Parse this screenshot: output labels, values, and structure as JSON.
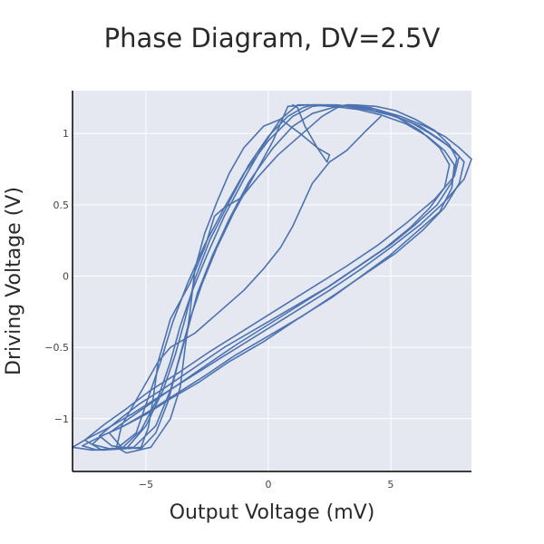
{
  "chart_data": {
    "type": "line",
    "title": "Phase Diagram, DV=2.5V",
    "xlabel": "Output Voltage (mV)",
    "ylabel": "Driving Voltage (V)",
    "xlim": [
      -8.0,
      8.3
    ],
    "ylim": [
      -1.37,
      1.3
    ],
    "xticks": [
      -5,
      0,
      5
    ],
    "xtick_labels": [
      "−5",
      "0",
      "5"
    ],
    "yticks": [
      -1,
      -0.5,
      0,
      0.5,
      1
    ],
    "ytick_labels": [
      "−1",
      "−0.5",
      "0",
      "0.5",
      "1"
    ],
    "grid": true,
    "legend": "none",
    "colors": {
      "series": "#4c72b0",
      "plot_bg": "#e5e8f0",
      "grid": "#ffffff",
      "axis": "#000000"
    },
    "series": [
      {
        "x": [
          0.8,
          1.6,
          2.6,
          3.6,
          4.6,
          5.6,
          6.5,
          7.2,
          7.6,
          7.5,
          7.0,
          6.0,
          5.0,
          3.8,
          2.6,
          1.2,
          -0.2,
          -1.6,
          -2.8,
          -4.0,
          -5.0,
          -6.0,
          -6.8,
          -7.2,
          -6.5,
          -5.5,
          -4.6,
          -4.0,
          -3.6,
          -3.2,
          -2.7,
          -2.1,
          -1.4,
          -0.6,
          0.2,
          0.8
        ],
        "y": [
          1.19,
          1.2,
          1.19,
          1.17,
          1.13,
          1.07,
          0.98,
          0.88,
          0.78,
          0.62,
          0.45,
          0.3,
          0.15,
          0.0,
          -0.15,
          -0.3,
          -0.46,
          -0.6,
          -0.74,
          -0.86,
          -0.97,
          -1.06,
          -1.12,
          -1.18,
          -1.21,
          -1.2,
          -1.05,
          -0.8,
          -0.55,
          -0.3,
          -0.05,
          0.2,
          0.45,
          0.7,
          0.95,
          1.19
        ]
      },
      {
        "x": [
          1.2,
          2.2,
          3.2,
          4.2,
          5.2,
          6.2,
          7.0,
          7.6,
          8.0,
          7.8,
          7.2,
          6.3,
          5.2,
          4.0,
          2.8,
          1.4,
          0.0,
          -1.4,
          -2.6,
          -3.8,
          -4.9,
          -5.9,
          -6.8,
          -7.6,
          -7.0,
          -6.0,
          -5.2,
          -4.5,
          -4.0,
          -3.6,
          -3.1,
          -2.5,
          -1.8,
          -1.0,
          -0.2,
          0.5,
          1.2
        ],
        "y": [
          1.2,
          1.2,
          1.19,
          1.16,
          1.12,
          1.05,
          0.96,
          0.88,
          0.8,
          0.65,
          0.48,
          0.32,
          0.16,
          0.02,
          -0.12,
          -0.28,
          -0.42,
          -0.56,
          -0.7,
          -0.83,
          -0.95,
          -1.05,
          -1.12,
          -1.19,
          -1.22,
          -1.21,
          -1.08,
          -0.85,
          -0.6,
          -0.35,
          -0.1,
          0.15,
          0.42,
          0.68,
          0.92,
          1.1,
          1.2
        ]
      },
      {
        "x": [
          2.4,
          3.4,
          4.4,
          5.4,
          6.4,
          7.2,
          7.8,
          8.3,
          8.0,
          7.2,
          6.2,
          5.0,
          3.8,
          2.5,
          1.0,
          -0.5,
          -2.0,
          -3.3,
          -4.5,
          -5.6,
          -6.6,
          -7.4,
          -8.0,
          -7.2,
          -6.2,
          -5.4,
          -4.9,
          -4.4,
          -3.9,
          -3.3,
          -2.6,
          -1.8,
          -1.0,
          0.0,
          1.0,
          1.8,
          2.4
        ],
        "y": [
          1.2,
          1.19,
          1.17,
          1.12,
          1.05,
          0.98,
          0.9,
          0.82,
          0.68,
          0.52,
          0.36,
          0.2,
          0.05,
          -0.1,
          -0.26,
          -0.42,
          -0.58,
          -0.72,
          -0.85,
          -0.97,
          -1.07,
          -1.14,
          -1.2,
          -1.22,
          -1.21,
          -1.1,
          -0.85,
          -0.6,
          -0.32,
          -0.05,
          0.22,
          0.48,
          0.72,
          0.95,
          1.12,
          1.19,
          1.2
        ]
      },
      {
        "x": [
          3.0,
          3.3,
          4.2,
          5.2,
          6.2,
          7.0,
          7.4,
          7.2,
          6.6,
          5.8,
          4.8,
          3.6,
          2.4,
          1.0,
          -0.4,
          -1.8,
          -3.0,
          -4.2,
          -5.3,
          -6.2,
          -6.9,
          -6.4,
          -5.7,
          -5.2,
          -4.9,
          -4.7,
          -4.5,
          -4.0,
          -3.2,
          -2.6,
          -2.2,
          -1.8,
          -1.1,
          -0.4,
          0.4,
          1.4,
          2.2,
          2.8,
          3.0
        ],
        "y": [
          1.19,
          1.2,
          1.18,
          1.12,
          1.02,
          0.9,
          0.78,
          0.62,
          0.48,
          0.34,
          0.2,
          0.06,
          -0.08,
          -0.22,
          -0.36,
          -0.5,
          -0.64,
          -0.78,
          -0.9,
          -1.02,
          -1.12,
          -1.19,
          -1.21,
          -1.2,
          -1.06,
          -0.85,
          -0.6,
          -0.3,
          -0.05,
          0.2,
          0.42,
          0.48,
          0.55,
          0.7,
          0.85,
          1.0,
          1.12,
          1.18,
          1.19
        ]
      },
      {
        "x": [
          4.6,
          4.0,
          3.2,
          2.5,
          1.8,
          1.4,
          1.0,
          0.5,
          -0.2,
          -1.0,
          -2.0,
          -3.0,
          -4.0,
          -4.5,
          -5.0,
          -5.5,
          -6.0,
          -6.2,
          -5.8,
          -4.8,
          -4.0,
          -3.6,
          -3.4,
          -3.2,
          -3.0,
          -2.6,
          -2.1,
          -1.6,
          -1.0,
          -0.2,
          0.5,
          1.3,
          2.0,
          2.5,
          2.4,
          2.0,
          1.5,
          1.2,
          1.0
        ],
        "y": [
          1.12,
          1.02,
          0.88,
          0.8,
          0.65,
          0.5,
          0.35,
          0.2,
          0.05,
          -0.1,
          -0.25,
          -0.4,
          -0.5,
          -0.6,
          -0.75,
          -0.9,
          -1.05,
          -1.2,
          -1.24,
          -1.2,
          -1.0,
          -0.78,
          -0.5,
          -0.25,
          0.05,
          0.3,
          0.52,
          0.72,
          0.9,
          1.05,
          1.1,
          1.0,
          0.9,
          0.85,
          0.8,
          0.9,
          1.05,
          1.18,
          1.2
        ]
      },
      {
        "x": [
          3.5,
          4.4,
          5.2,
          6.0,
          6.8,
          7.4,
          7.7,
          7.5,
          6.9,
          6.0,
          5.0,
          3.8,
          2.6,
          1.3,
          0.0,
          -1.3,
          -2.5,
          -3.6,
          -4.7,
          -5.7,
          -6.5,
          -6.0,
          -5.2,
          -4.6,
          -4.1,
          -3.7,
          -3.3,
          -2.9,
          -2.3,
          -1.6,
          -0.8,
          0.2,
          1.0,
          1.8,
          2.6,
          3.2,
          3.5
        ],
        "y": [
          1.2,
          1.19,
          1.16,
          1.1,
          1.02,
          0.92,
          0.82,
          0.66,
          0.5,
          0.36,
          0.22,
          0.08,
          -0.06,
          -0.2,
          -0.34,
          -0.48,
          -0.62,
          -0.75,
          -0.88,
          -1.0,
          -1.1,
          -1.2,
          -1.21,
          -1.1,
          -0.88,
          -0.62,
          -0.38,
          -0.12,
          0.14,
          0.4,
          0.66,
          0.9,
          1.05,
          1.14,
          1.18,
          1.2,
          1.2
        ]
      },
      {
        "x": [
          1.8,
          2.8,
          3.8,
          4.8,
          5.8,
          6.6,
          7.3,
          7.8,
          7.6,
          6.8,
          5.7,
          4.5,
          3.2,
          1.8,
          0.4,
          -1.0,
          -2.4,
          -3.6,
          -4.8,
          -5.8,
          -6.7,
          -7.5,
          -6.8,
          -5.8,
          -5.0,
          -4.3,
          -3.8,
          -3.4,
          -3.0,
          -2.4,
          -1.6,
          -0.8,
          0.0,
          0.8,
          1.4,
          1.8
        ],
        "y": [
          1.2,
          1.2,
          1.18,
          1.14,
          1.08,
          1.0,
          0.92,
          0.84,
          0.7,
          0.54,
          0.38,
          0.22,
          0.07,
          -0.08,
          -0.23,
          -0.38,
          -0.53,
          -0.67,
          -0.8,
          -0.93,
          -1.04,
          -1.15,
          -1.22,
          -1.21,
          -1.05,
          -0.8,
          -0.55,
          -0.3,
          -0.02,
          0.25,
          0.52,
          0.78,
          0.98,
          1.12,
          1.18,
          1.2
        ]
      }
    ]
  }
}
